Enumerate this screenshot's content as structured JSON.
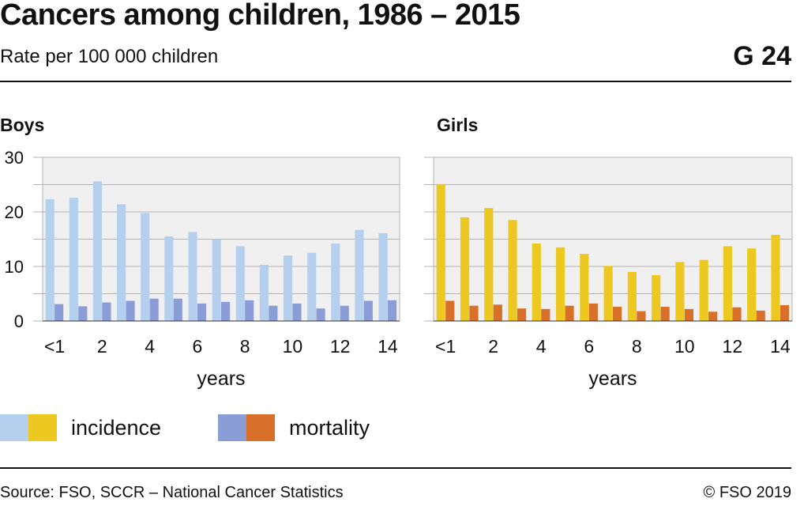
{
  "header": {
    "title": "Cancers among children, 1986 – 2015",
    "subtitle": "Rate per 100 000 children",
    "figure_code": "G 24"
  },
  "legend": {
    "incidence_label": "incidence",
    "mortality_label": "mortality"
  },
  "footer": {
    "source": "Source: FSO, SCCR – National Cancer Statistics",
    "copyright": "© FSO 2019"
  },
  "colors": {
    "boys_incidence": "#b5cfee",
    "boys_mortality": "#8a9dd6",
    "girls_incidence": "#ecc820",
    "girls_mortality": "#d9702a",
    "plot_background": "#f0f0f0",
    "grid": "#b3b3b3"
  },
  "chart_data": [
    {
      "type": "bar",
      "title": "Boys",
      "xlabel": "years",
      "ylabel": "",
      "ylim": [
        0,
        30
      ],
      "yticks": [
        0,
        10,
        20,
        30
      ],
      "grid": true,
      "categories": [
        "<1",
        "1",
        "2",
        "3",
        "4",
        "5",
        "6",
        "7",
        "8",
        "9",
        "10",
        "11",
        "12",
        "13",
        "14"
      ],
      "xtick_labels": [
        "<1",
        "",
        "2",
        "",
        "4",
        "",
        "6",
        "",
        "8",
        "",
        "10",
        "",
        "12",
        "",
        "14"
      ],
      "series": [
        {
          "name": "incidence",
          "values": [
            22.3,
            22.6,
            25.6,
            21.4,
            19.8,
            15.5,
            16.3,
            15.0,
            13.7,
            10.3,
            12.0,
            12.5,
            14.2,
            16.7,
            16.1
          ]
        },
        {
          "name": "mortality",
          "values": [
            3.1,
            2.7,
            3.4,
            3.7,
            4.1,
            4.1,
            3.2,
            3.5,
            3.8,
            2.8,
            3.2,
            2.3,
            2.8,
            3.7,
            3.8
          ]
        }
      ]
    },
    {
      "type": "bar",
      "title": "Girls",
      "xlabel": "years",
      "ylabel": "",
      "ylim": [
        0,
        30
      ],
      "yticks": [
        0,
        10,
        20,
        30
      ],
      "grid": true,
      "categories": [
        "<1",
        "1",
        "2",
        "3",
        "4",
        "5",
        "6",
        "7",
        "8",
        "9",
        "10",
        "11",
        "12",
        "13",
        "14"
      ],
      "xtick_labels": [
        "<1",
        "",
        "2",
        "",
        "4",
        "",
        "6",
        "",
        "8",
        "",
        "10",
        "",
        "12",
        "",
        "14"
      ],
      "series": [
        {
          "name": "incidence",
          "values": [
            25.1,
            19.0,
            20.7,
            18.5,
            14.2,
            13.5,
            12.3,
            10.1,
            9.0,
            8.4,
            10.8,
            11.2,
            13.7,
            13.3,
            15.8
          ]
        },
        {
          "name": "mortality",
          "values": [
            3.7,
            2.8,
            3.0,
            2.3,
            2.2,
            2.8,
            3.2,
            2.6,
            1.8,
            2.6,
            2.2,
            1.7,
            2.5,
            1.9,
            2.9
          ]
        }
      ]
    }
  ]
}
